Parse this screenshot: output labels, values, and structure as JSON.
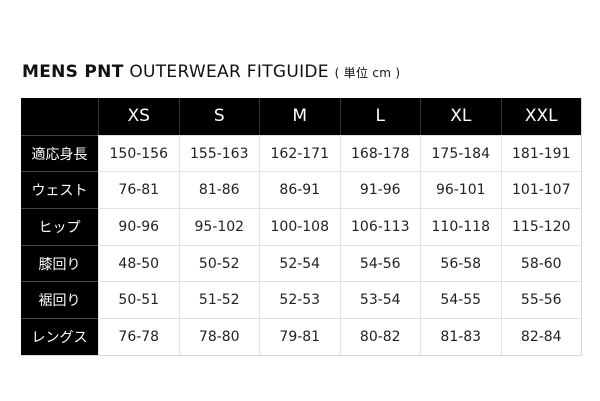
{
  "title": {
    "bold": "MENS PNT",
    "light": "OUTERWEAR FITGUIDE",
    "unit": "( 単位 cm )"
  },
  "table": {
    "columns": [
      "XS",
      "S",
      "M",
      "L",
      "XL",
      "XXL"
    ],
    "rows": [
      {
        "label": "適応身長",
        "values": [
          "150-156",
          "155-163",
          "162-171",
          "168-178",
          "175-184",
          "181-191"
        ]
      },
      {
        "label": "ウェスト",
        "values": [
          "76-81",
          "81-86",
          "86-91",
          "91-96",
          "96-101",
          "101-107"
        ]
      },
      {
        "label": "ヒップ",
        "values": [
          "90-96",
          "95-102",
          "100-108",
          "106-113",
          "110-118",
          "115-120"
        ]
      },
      {
        "label": "膝回り",
        "values": [
          "48-50",
          "50-52",
          "52-54",
          "54-56",
          "56-58",
          "58-60"
        ]
      },
      {
        "label": "裾回り",
        "values": [
          "50-51",
          "51-52",
          "52-53",
          "53-54",
          "54-55",
          "55-56"
        ]
      },
      {
        "label": "レングス",
        "values": [
          "76-78",
          "78-80",
          "79-81",
          "80-82",
          "81-83",
          "82-84"
        ]
      }
    ]
  }
}
